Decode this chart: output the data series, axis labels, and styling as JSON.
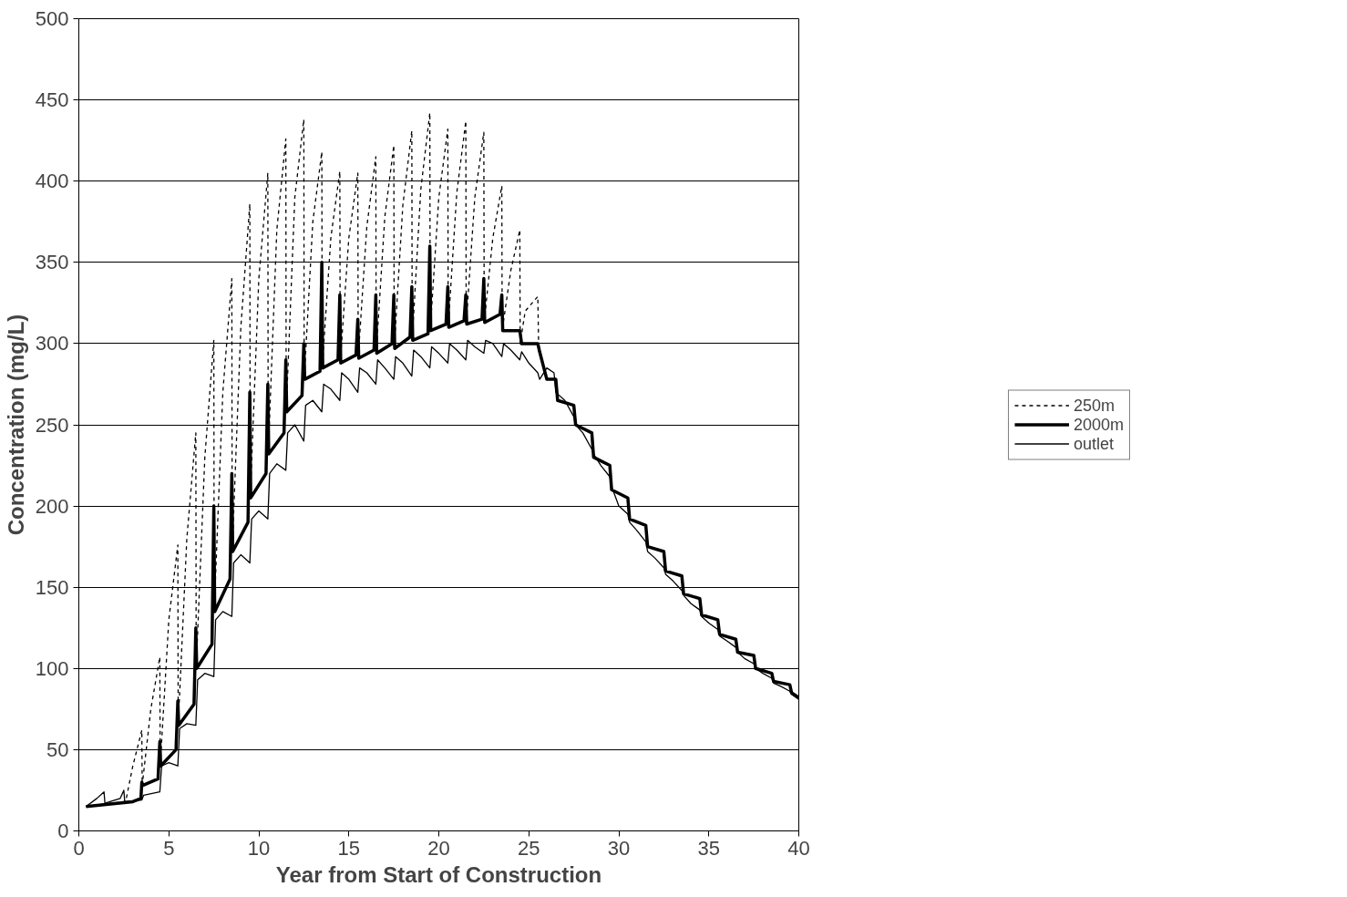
{
  "chart_data": {
    "type": "line",
    "xlabel": "Year from Start of Construction",
    "ylabel": "Concentration (mg/L)",
    "xlim": [
      0,
      40
    ],
    "ylim": [
      0,
      500
    ],
    "xticks": [
      0,
      5,
      10,
      15,
      20,
      25,
      30,
      35,
      40
    ],
    "yticks": [
      0,
      50,
      100,
      150,
      200,
      250,
      300,
      350,
      400,
      450,
      500
    ],
    "grid": "y",
    "legend": "right",
    "series": [
      {
        "name": "250m",
        "color": "#000000",
        "line_style": "dotted",
        "x": [
          0.4,
          2.5,
          2.6,
          3.0,
          3.5,
          3.52,
          4.0,
          4.5,
          4.52,
          5.0,
          5.5,
          5.52,
          6.0,
          6.5,
          6.52,
          7.0,
          7.5,
          7.52,
          8.0,
          8.5,
          8.52,
          9.0,
          9.5,
          9.52,
          10.0,
          10.5,
          10.52,
          11.0,
          11.5,
          11.52,
          12.0,
          12.5,
          12.52,
          13.0,
          13.5,
          13.52,
          14.0,
          14.5,
          14.52,
          15.0,
          15.5,
          15.52,
          16.0,
          16.5,
          16.52,
          17.0,
          17.5,
          17.52,
          18.0,
          18.5,
          18.52,
          19.0,
          19.5,
          19.52,
          20.0,
          20.5,
          20.52,
          21.0,
          21.5,
          21.52,
          22.0,
          22.5,
          22.52,
          23.0,
          23.5,
          23.52,
          24.0,
          24.5,
          24.52,
          24.8,
          25.5,
          25.55
        ],
        "values": [
          15,
          18,
          18,
          40,
          62,
          28,
          75,
          107,
          40,
          130,
          176,
          65,
          180,
          245,
          100,
          230,
          302,
          135,
          270,
          340,
          172,
          310,
          386,
          205,
          340,
          405,
          232,
          370,
          426,
          258,
          390,
          438,
          278,
          375,
          418,
          285,
          365,
          406,
          288,
          365,
          405,
          291,
          372,
          415,
          294,
          378,
          422,
          297,
          385,
          431,
          302,
          395,
          442,
          308,
          390,
          432,
          310,
          393,
          437,
          312,
          390,
          430,
          313,
          365,
          397,
          308,
          345,
          370,
          300,
          320,
          329,
          295
        ]
      },
      {
        "name": "2000m",
        "color": "#000000",
        "line_style": "solid",
        "x": [
          0.4,
          3.0,
          3.45,
          3.5,
          3.55,
          4.4,
          4.5,
          4.55,
          5.4,
          5.5,
          5.55,
          6.4,
          6.5,
          6.55,
          7.4,
          7.5,
          7.55,
          8.4,
          8.5,
          8.55,
          9.4,
          9.5,
          9.55,
          10.4,
          10.5,
          10.55,
          11.4,
          11.5,
          11.55,
          12.4,
          12.5,
          12.55,
          13.4,
          13.5,
          13.55,
          14.4,
          14.5,
          14.55,
          15.4,
          15.5,
          15.55,
          16.4,
          16.5,
          16.55,
          17.4,
          17.5,
          17.55,
          18.4,
          18.5,
          18.55,
          19.4,
          19.5,
          19.55,
          20.4,
          20.5,
          20.55,
          21.4,
          21.5,
          21.55,
          22.4,
          22.5,
          22.55,
          23.4,
          23.5,
          23.55,
          24.5,
          24.6,
          25.5,
          25.6,
          26.0,
          26.5,
          26.6,
          27.5,
          27.6,
          28.5,
          28.6,
          29.5,
          29.6,
          30.5,
          30.6,
          31.5,
          31.6,
          32.5,
          32.6,
          33.5,
          33.6,
          34.5,
          34.6,
          35.5,
          35.6,
          36.5,
          36.6,
          37.5,
          37.6,
          38.5,
          38.6,
          39.5,
          39.6,
          40.0
        ],
        "values": [
          15,
          18,
          20,
          30,
          28,
          32,
          55,
          40,
          50,
          80,
          65,
          78,
          125,
          100,
          115,
          200,
          135,
          155,
          220,
          172,
          190,
          270,
          205,
          220,
          275,
          232,
          245,
          290,
          258,
          268,
          300,
          278,
          283,
          350,
          285,
          290,
          330,
          288,
          293,
          315,
          291,
          296,
          330,
          294,
          300,
          330,
          297,
          304,
          335,
          302,
          306,
          360,
          308,
          312,
          335,
          310,
          314,
          330,
          312,
          315,
          340,
          313,
          318,
          330,
          308,
          308,
          300,
          300,
          295,
          278,
          278,
          265,
          262,
          250,
          245,
          230,
          225,
          210,
          205,
          192,
          188,
          175,
          172,
          160,
          157,
          146,
          143,
          133,
          130,
          121,
          118,
          110,
          108,
          100,
          97,
          92,
          90,
          85,
          82
        ]
      },
      {
        "name": "outlet",
        "color": "#000000",
        "line_style": "solid",
        "x": [
          0.4,
          1.0,
          1.4,
          1.45,
          2.3,
          2.5,
          2.55,
          3.5,
          3.6,
          4.5,
          4.6,
          5.0,
          5.5,
          5.6,
          6.0,
          6.5,
          6.6,
          7.0,
          7.5,
          7.6,
          8.0,
          8.5,
          8.6,
          9.0,
          9.5,
          9.6,
          10.0,
          10.5,
          10.6,
          11.0,
          11.5,
          11.6,
          12.0,
          12.5,
          12.6,
          13.0,
          13.5,
          13.6,
          14.0,
          14.5,
          14.6,
          15.0,
          15.5,
          15.6,
          16.0,
          16.5,
          16.6,
          17.0,
          17.5,
          17.6,
          18.0,
          18.5,
          18.6,
          19.0,
          19.5,
          19.6,
          20.0,
          20.5,
          20.6,
          21.0,
          21.5,
          21.6,
          22.0,
          22.5,
          22.6,
          23.0,
          23.5,
          23.6,
          24.0,
          24.5,
          24.6,
          25.0,
          25.5,
          25.6,
          26.0,
          26.4,
          26.5,
          27.0,
          27.5,
          27.6,
          28.0,
          28.5,
          28.6,
          29.0,
          29.5,
          29.6,
          30.0,
          30.5,
          30.6,
          31.0,
          31.5,
          31.6,
          32.0,
          32.5,
          32.6,
          33.0,
          33.5,
          33.6,
          34.0,
          34.5,
          34.6,
          35.0,
          35.5,
          35.6,
          36.0,
          36.5,
          36.6,
          37.0,
          37.5,
          37.6,
          38.0,
          38.5,
          38.6,
          39.0,
          39.5,
          39.6,
          40.0
        ],
        "values": [
          15,
          20,
          24,
          17,
          20,
          25,
          18,
          19,
          22,
          24,
          40,
          42,
          40,
          63,
          66,
          65,
          93,
          97,
          95,
          130,
          135,
          132,
          165,
          170,
          165,
          192,
          197,
          192,
          220,
          226,
          222,
          245,
          250,
          240,
          262,
          265,
          258,
          275,
          272,
          265,
          282,
          278,
          270,
          285,
          282,
          275,
          290,
          285,
          278,
          292,
          288,
          280,
          296,
          292,
          285,
          298,
          294,
          288,
          300,
          296,
          290,
          302,
          298,
          294,
          302,
          300,
          292,
          300,
          296,
          290,
          295,
          288,
          282,
          278,
          285,
          282,
          270,
          265,
          255,
          250,
          245,
          235,
          232,
          225,
          218,
          212,
          200,
          195,
          190,
          185,
          178,
          172,
          168,
          162,
          158,
          154,
          148,
          145,
          140,
          136,
          132,
          128,
          124,
          120,
          117,
          113,
          110,
          106,
          103,
          100,
          97,
          94,
          91,
          89,
          86,
          84,
          81
        ]
      }
    ]
  }
}
